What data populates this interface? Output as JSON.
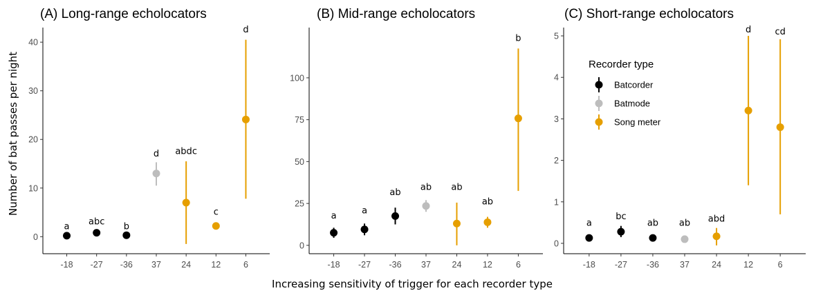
{
  "colors": {
    "Batcorder": "#000000",
    "Batmode": "#bdbdbd",
    "Song meter": "#e69f00"
  },
  "x_axis_title": "Increasing sensitivity of trigger for each recorder type",
  "y_axis_title": "Number of bat passes per night",
  "legend": {
    "title": "Recorder type",
    "items": [
      "Batcorder",
      "Batmode",
      "Song meter"
    ]
  },
  "chart_data": [
    {
      "type": "scatter",
      "title": "(A) Long-range echolocators",
      "categories": [
        "-18",
        "-27",
        "-36",
        "37",
        "24",
        "12",
        "6"
      ],
      "recorder": [
        "Batcorder",
        "Batcorder",
        "Batcorder",
        "Batmode",
        "Song meter",
        "Song meter",
        "Song meter"
      ],
      "values": [
        0.2,
        0.8,
        0.3,
        13.0,
        7.0,
        2.2,
        24.1
      ],
      "lower": [
        0.0,
        0.3,
        0.0,
        10.5,
        -1.5,
        1.5,
        7.8
      ],
      "upper": [
        0.5,
        1.3,
        0.6,
        15.3,
        15.5,
        2.9,
        40.5
      ],
      "labels": [
        "a",
        "abc",
        "b",
        "d",
        "abdc",
        "c",
        "d"
      ],
      "label_y": [
        1.5,
        2.5,
        1.5,
        16.5,
        17.0,
        4.5,
        42.0
      ],
      "yticks": [
        0,
        10,
        20,
        30,
        40
      ],
      "ylim": [
        -3.5,
        43
      ]
    },
    {
      "type": "scatter",
      "title": "(B) Mid-range echolocators",
      "categories": [
        "-18",
        "-27",
        "-36",
        "37",
        "24",
        "12",
        "6"
      ],
      "recorder": [
        "Batcorder",
        "Batcorder",
        "Batcorder",
        "Batmode",
        "Song meter",
        "Song meter",
        "Song meter"
      ],
      "values": [
        7.5,
        9.5,
        17.5,
        23.5,
        13.0,
        13.8,
        75.8
      ],
      "lower": [
        4.5,
        6.0,
        12.5,
        20.0,
        0.0,
        10.5,
        32.5
      ],
      "upper": [
        10.5,
        13.0,
        22.5,
        27.0,
        25.5,
        17.0,
        117.5
      ],
      "labels": [
        "a",
        "a",
        "ab",
        "ab",
        "ab",
        "ab",
        "b"
      ],
      "label_y": [
        16,
        19,
        30,
        33,
        33,
        24.5,
        122
      ],
      "yticks": [
        0,
        25,
        50,
        75,
        100
      ],
      "ylim": [
        -5,
        130
      ]
    },
    {
      "type": "scatter",
      "title": "(C) Short-range echolocators",
      "categories": [
        "-18",
        "-27",
        "-36",
        "37",
        "24",
        "12",
        "6"
      ],
      "recorder": [
        "Batcorder",
        "Batcorder",
        "Batcorder",
        "Batmode",
        "Song meter",
        "Song meter",
        "Song meter"
      ],
      "values": [
        0.13,
        0.28,
        0.13,
        0.1,
        0.17,
        3.2,
        2.8
      ],
      "lower": [
        0.1,
        0.15,
        0.1,
        0.08,
        -0.05,
        1.4,
        0.7
      ],
      "upper": [
        0.16,
        0.42,
        0.16,
        0.12,
        0.37,
        5.0,
        4.92
      ],
      "labels": [
        "a",
        "bc",
        "ab",
        "ab",
        "abd",
        "d",
        "cd"
      ],
      "label_y": [
        0.42,
        0.58,
        0.42,
        0.42,
        0.52,
        5.08,
        5.03
      ],
      "yticks": [
        0,
        1,
        2,
        3,
        4,
        5
      ],
      "ylim": [
        -0.25,
        5.2
      ]
    }
  ]
}
